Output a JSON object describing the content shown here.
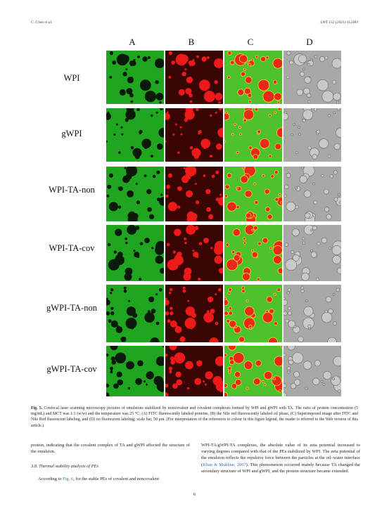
{
  "header": {
    "left": "C. Chen et al.",
    "right": "LWT 152 (2021) 112383"
  },
  "figure": {
    "columns": [
      "A",
      "B",
      "C",
      "D"
    ],
    "rows": [
      "WPI",
      "gWPI",
      "WPI-TA-non",
      "WPI-TA-cov",
      "gWPI-TA-non",
      "gWPI-TA-cov"
    ],
    "panel_colors": {
      "A_bg": "#1fa51f",
      "A_drop": "#0b1a0b",
      "B_bg": "#3a0505",
      "B_drop": "#ee1a1a",
      "C_bg": "#4ec22c",
      "C_drop": "#e8281a",
      "C_ring": "#f0d22a",
      "D_bg": "#a8a8a8",
      "D_drop": "#c9c9c9"
    }
  },
  "caption": {
    "label": "Fig. 5.",
    "text": "Confocal laser scanning microscopy pictures of emulsions stabilized by noncovalent and covalent complexes formed by WPI and gWPI with TA. The ratio of protein concentration (5 mg/mL) and MCT was 1:1 (w/w) and the temperature was 25 °C; (A) FITC fluorescently labeled proteins, (B) the Nile red fluorescently labeled oil phase, (C) Superimposed image after FITC and Nile Red fluorescent labeling, and (D) no fluorescent labeling; scale bar, 50 μm. (For interpretation of the references to colour in this figure legend, the reader is referred to the Web version of this article.)"
  },
  "body_left": {
    "para1": "protein, indicating that the covalent complex of TA and gWPI affected the structure of the emulsion.",
    "section": "3.8.  Thermal stability analysis of PEs",
    "para2_before": "According to ",
    "para2_link": "Fig. 6",
    "para2_after": ", for the stable PEs of covalent and noncovalent"
  },
  "body_right": {
    "text_before": "WPI-TA/gWPI-TA complexes, the absolute value of its zeta potential increased to varying degrees compared with that of the PEs stabilized by WPI. The zeta potential of the emulsion reflects the repulsive force between the particles at the oil–water interface (",
    "link": "Khan & Mukhtar, 2007",
    "text_after": "). This phenomenon occurred mainly because TA changed the secondary structure of WPI and gWPI, and the protein structure became extended."
  },
  "page_number": "6"
}
